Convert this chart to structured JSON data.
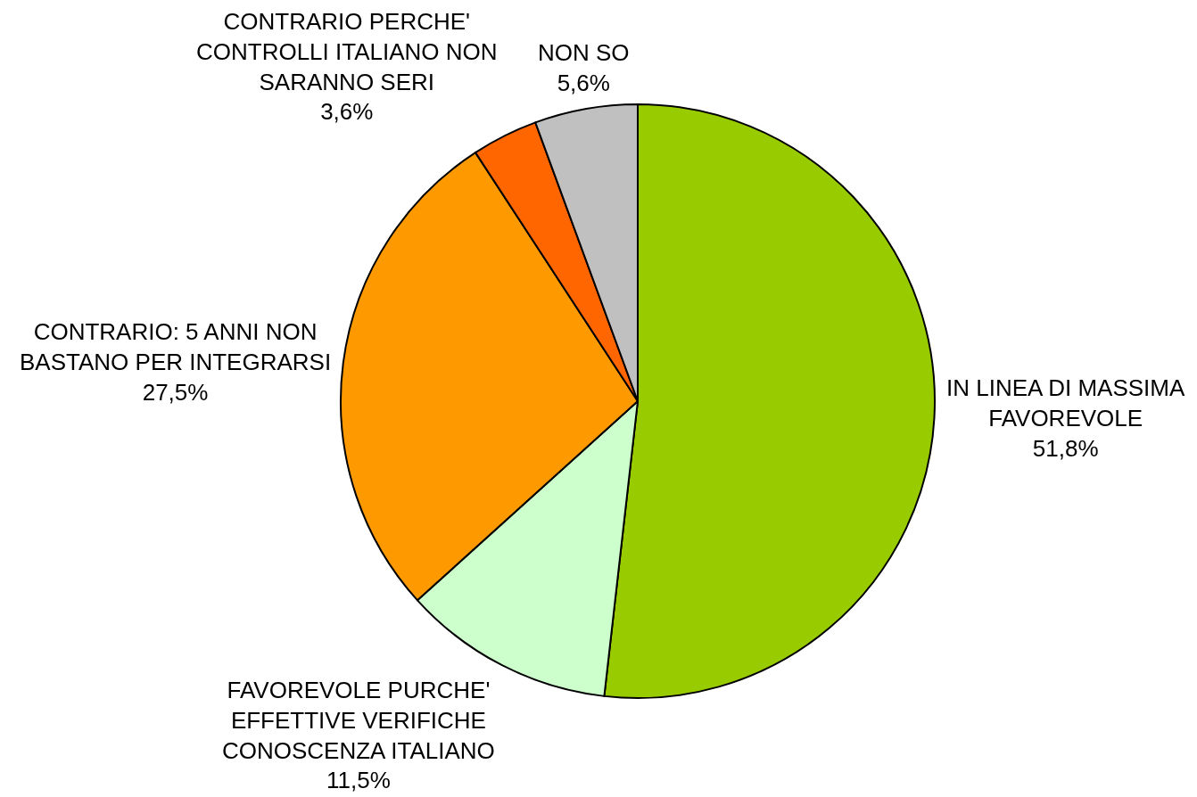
{
  "chart_data": {
    "type": "pie",
    "categories": [
      "IN LINEA DI MASSIMA FAVOREVOLE",
      "FAVOREVOLE PURCHE' EFFETTIVE VERIFICHE CONOSCENZA ITALIANO",
      "CONTRARIO: 5 ANNI NON BASTANO PER INTEGRARSI",
      "CONTRARIO PERCHE' CONTROLLI ITALIANO NON SARANNO SERI",
      "NON SO"
    ],
    "values": [
      51.8,
      11.5,
      27.5,
      3.6,
      5.6
    ],
    "value_labels": [
      "51,8%",
      "11,5%",
      "27,5%",
      "3,6%",
      "5,6%"
    ],
    "colors": [
      "#99cc00",
      "#ccffcc",
      "#ff9900",
      "#ff6600",
      "#c0c0c0"
    ],
    "legend": false
  }
}
